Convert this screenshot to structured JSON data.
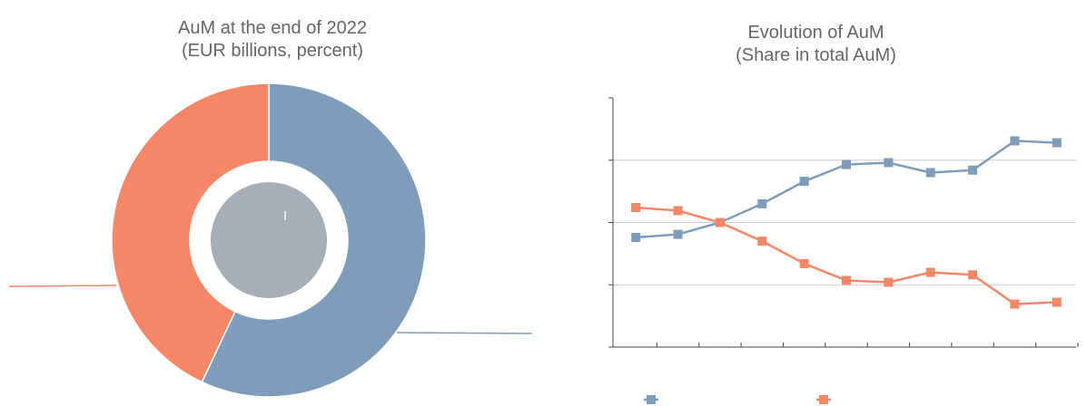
{
  "chart_data": [
    {
      "type": "pie",
      "title": "AuM at the end of 2022",
      "subtitle": "(EUR billions, percent)",
      "inner_label": "I",
      "slices": [
        {
          "value": 57,
          "color": "#7f9cba"
        },
        {
          "value": 43,
          "color": "#f58668"
        }
      ],
      "inner_circle_color": "#a8aeb8"
    },
    {
      "type": "line",
      "title": "Evolution of AuM",
      "subtitle": "(Share in total AuM)",
      "x": [
        1,
        2,
        3,
        4,
        5,
        6,
        7,
        8,
        9,
        10,
        11
      ],
      "ylim": [
        0,
        4
      ],
      "grid": true,
      "series": [
        {
          "color": "#7f9cba",
          "values": [
            1.76,
            1.81,
            2.0,
            2.3,
            2.66,
            2.93,
            2.96,
            2.8,
            2.84,
            3.31,
            3.28
          ]
        },
        {
          "color": "#f58668",
          "values": [
            2.24,
            2.19,
            2.0,
            1.7,
            1.34,
            1.07,
            1.04,
            1.2,
            1.16,
            0.69,
            0.72
          ]
        }
      ],
      "legend": "bottom"
    }
  ]
}
